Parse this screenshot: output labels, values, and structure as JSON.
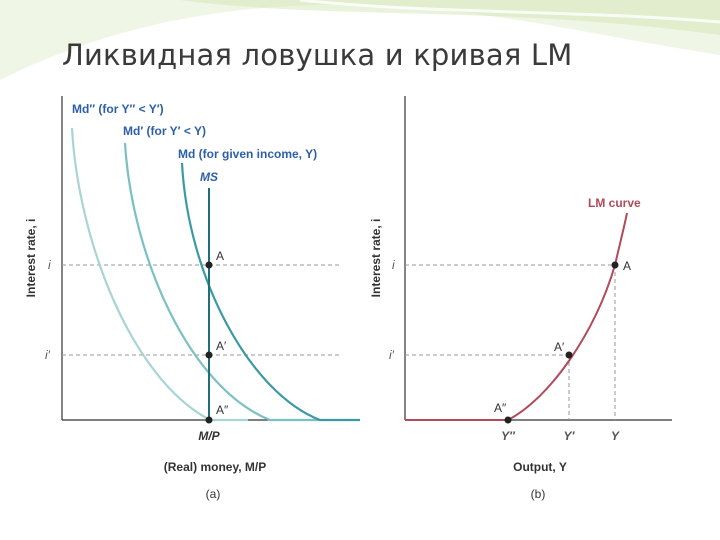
{
  "slide": {
    "title": "Ликвидная ловушка и кривая LM"
  },
  "panel_a": {
    "curve_label_outer": "Md″ (for Y″ < Y′)",
    "curve_label_middle": "Md′ (for Y′ < Y)",
    "curve_label_inner": "Md (for given income, Y)",
    "supply_label": "MS",
    "y_axis_label": "Interest rate, i",
    "x_axis_label": "(Real) money, M/P",
    "tick_i": "i",
    "tick_i_prime": "i′",
    "tick_mp": "M/P",
    "point_a": "A",
    "point_a1": "A′",
    "point_a2": "A″",
    "caption": "(a)"
  },
  "panel_b": {
    "curve_label": "LM curve",
    "y_axis_label": "Interest rate, i",
    "x_axis_label": "Output, Y",
    "tick_i": "i",
    "tick_i_prime": "i′",
    "tick_y2": "Y″",
    "tick_y1": "Y′",
    "tick_y": "Y",
    "point_a": "A",
    "point_a1": "A′",
    "point_a2": "A″",
    "caption": "(b)"
  },
  "colors": {
    "md_outer": "#a9d4d5",
    "md_middle": "#7cc0c4",
    "md_inner": "#3a9aa3",
    "money_supply": "#1e6f78",
    "lm_curve": "#b14a5a",
    "label_blue": "#2d5fa8",
    "dashed": "#999999",
    "axis": "#333333"
  }
}
